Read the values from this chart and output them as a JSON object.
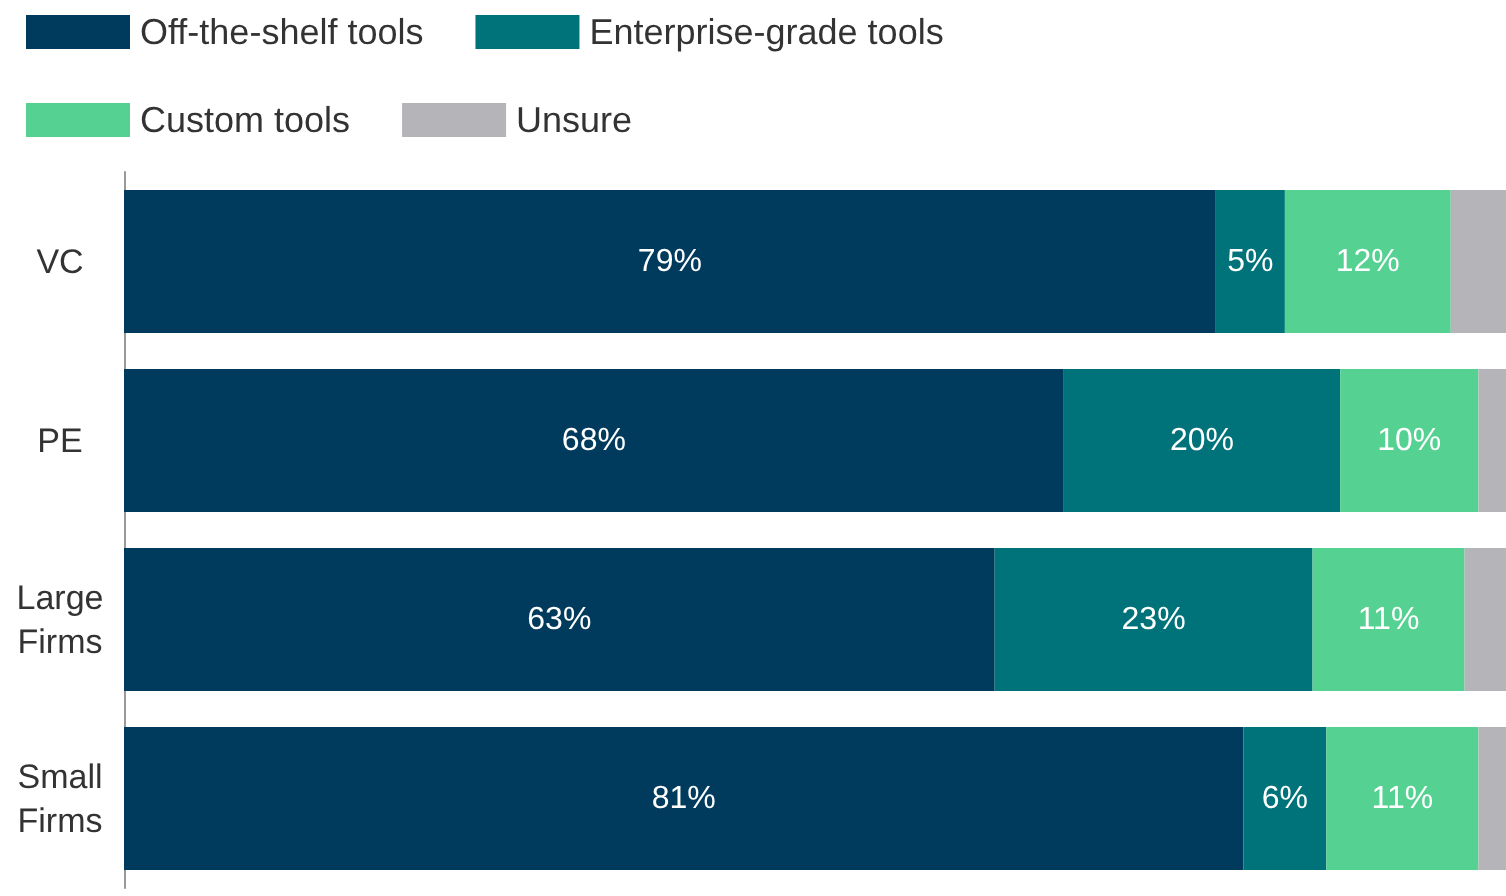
{
  "chart_data": {
    "type": "bar",
    "orientation": "horizontal",
    "stacked": true,
    "categories": [
      "VC",
      "PE",
      "Large Firms",
      "Small Firms"
    ],
    "xlim": [
      0,
      100
    ],
    "tick_labels": "y",
    "legend": "top left",
    "grid": false,
    "series": [
      {
        "name": "Off-the-shelf tools",
        "color": "#003a5d",
        "values": [
          79,
          68,
          63,
          81
        ],
        "value_labels": [
          "79%",
          "68%",
          "63%",
          "81%"
        ]
      },
      {
        "name": "Enterprise-grade tools",
        "color": "#00737a",
        "values": [
          5,
          20,
          23,
          6
        ],
        "value_labels": [
          "5%",
          "20%",
          "23%",
          "6%"
        ]
      },
      {
        "name": "Custom tools",
        "color": "#55d192",
        "values": [
          12,
          10,
          11,
          11
        ],
        "value_labels": [
          "12%",
          "10%",
          "11%",
          "11%"
        ]
      },
      {
        "name": "Unsure",
        "color": "#b4b4b9",
        "values": [
          4,
          2,
          3,
          2
        ]
      }
    ]
  }
}
